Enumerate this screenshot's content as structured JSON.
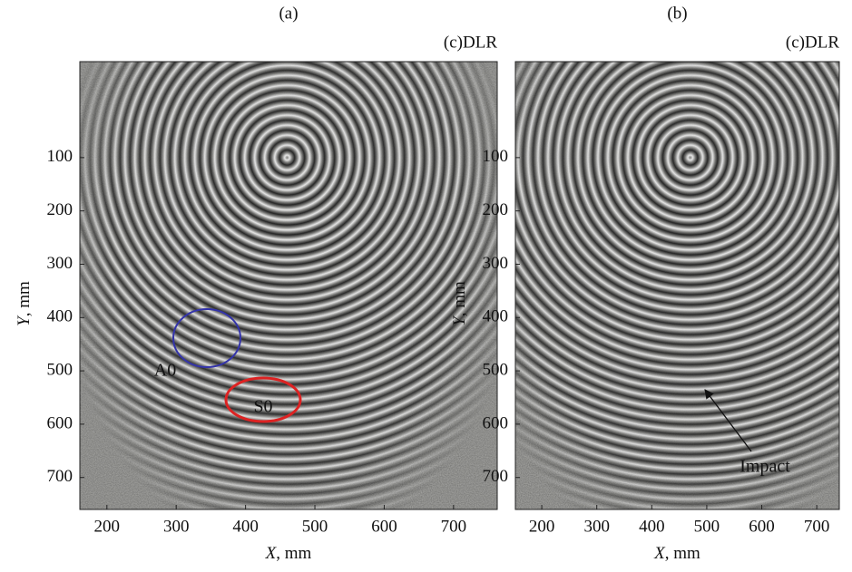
{
  "chart_data": [
    {
      "type": "image",
      "title": "(a)",
      "credit": "(c)DLR",
      "x_label": "X, mm",
      "y_label": "Y, mm",
      "xlim": [
        161,
        763
      ],
      "ylim": [
        -80,
        760
      ],
      "y_inverted": true,
      "xticks": [
        200,
        300,
        400,
        500,
        600,
        700
      ],
      "yticks": [
        100,
        200,
        300,
        400,
        500,
        600,
        700
      ],
      "annotations": [
        {
          "text": "A0",
          "color": "#3333aa"
        },
        {
          "text": "S0",
          "color": "#dd2222"
        }
      ]
    },
    {
      "type": "image",
      "title": "(b)",
      "credit": "(c)DLR",
      "x_label": "X, mm",
      "y_label": "Y, mm",
      "xlim": [
        152,
        741
      ],
      "ylim": [
        -80,
        760
      ],
      "y_inverted": true,
      "xticks": [
        200,
        300,
        400,
        500,
        600,
        700
      ],
      "yticks": [
        100,
        200,
        300,
        400,
        500,
        600,
        700
      ],
      "annotations": [
        {
          "text": "Impact",
          "color": "#111111"
        }
      ]
    }
  ]
}
